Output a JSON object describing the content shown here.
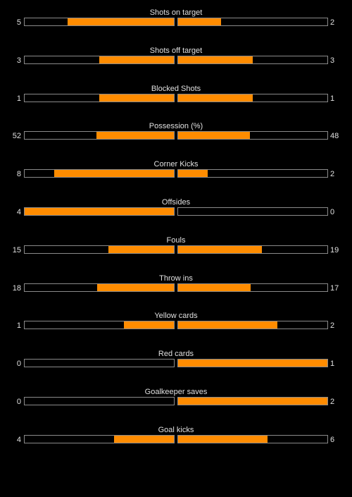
{
  "colors": {
    "background": "#000000",
    "bar_fill": "#ff8c00",
    "bar_border": "#8a8a8a",
    "text": "#e0e0e0"
  },
  "stats": [
    {
      "label": "Shots on target",
      "home": "5",
      "away": "2",
      "home_share": 0.714,
      "away_share": 0.286
    },
    {
      "label": "Shots off target",
      "home": "3",
      "away": "3",
      "home_share": 0.5,
      "away_share": 0.5
    },
    {
      "label": "Blocked Shots",
      "home": "1",
      "away": "1",
      "home_share": 0.5,
      "away_share": 0.5
    },
    {
      "label": "Possession (%)",
      "home": "52",
      "away": "48",
      "home_share": 0.52,
      "away_share": 0.48
    },
    {
      "label": "Corner Kicks",
      "home": "8",
      "away": "2",
      "home_share": 0.8,
      "away_share": 0.2
    },
    {
      "label": "Offsides",
      "home": "4",
      "away": "0",
      "home_share": 1.0,
      "away_share": 0.0
    },
    {
      "label": "Fouls",
      "home": "15",
      "away": "19",
      "home_share": 0.441,
      "away_share": 0.559
    },
    {
      "label": "Throw ins",
      "home": "18",
      "away": "17",
      "home_share": 0.514,
      "away_share": 0.486
    },
    {
      "label": "Yellow cards",
      "home": "1",
      "away": "2",
      "home_share": 0.333,
      "away_share": 0.667
    },
    {
      "label": "Red cards",
      "home": "0",
      "away": "1",
      "home_share": 0.0,
      "away_share": 1.0
    },
    {
      "label": "Goalkeeper saves",
      "home": "0",
      "away": "2",
      "home_share": 0.0,
      "away_share": 1.0
    },
    {
      "label": "Goal kicks",
      "home": "4",
      "away": "6",
      "home_share": 0.4,
      "away_share": 0.6
    }
  ]
}
